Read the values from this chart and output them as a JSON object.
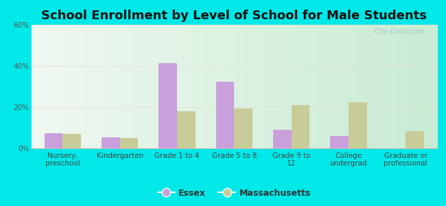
{
  "title": "School Enrollment by Level of School for Male Students",
  "categories": [
    "Nursery,\npreschool",
    "Kindergarten",
    "Grade 1 to 4",
    "Grade 5 to 8",
    "Grade 9 to\n12",
    "College\nundergrad",
    "Graduate or\nprofessional"
  ],
  "essex": [
    7.5,
    5.5,
    41.5,
    32.5,
    9.0,
    6.0,
    0.0
  ],
  "massachusetts": [
    7.0,
    5.0,
    18.0,
    19.5,
    21.0,
    22.5,
    8.5
  ],
  "essex_color": "#c9a0dc",
  "massachusetts_color": "#c8cc98",
  "background_outer": "#00e8e8",
  "background_inner_top": "#f0f8f0",
  "background_inner_bottom": "#c8ecd4",
  "ylim": [
    0,
    60
  ],
  "yticks": [
    0,
    20,
    40,
    60
  ],
  "ytick_labels": [
    "0%",
    "20%",
    "40%",
    "60%"
  ],
  "bar_width": 0.32,
  "title_fontsize": 13,
  "tick_fontsize": 7.5,
  "legend_fontsize": 9,
  "legend_labels": [
    "Essex",
    "Massachusetts"
  ],
  "watermark": "City-Data.com"
}
